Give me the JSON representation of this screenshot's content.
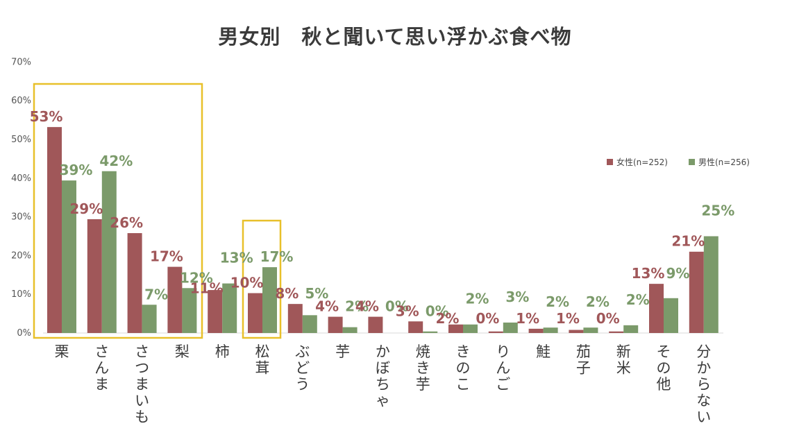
{
  "chart_data": {
    "type": "bar",
    "title": "男女別　秋と聞いて思い浮かぶ食べ物",
    "xlabel": "",
    "ylabel": "",
    "ylim": [
      0,
      70
    ],
    "yticks": [
      "0%",
      "10%",
      "20%",
      "30%",
      "40%",
      "50%",
      "60%",
      "70%"
    ],
    "categories": [
      "栗",
      "さんま",
      "さつまいも",
      "梨",
      "柿",
      "松茸",
      "ぶどう",
      "芋",
      "かぼちゃ",
      "焼き芋",
      "きのこ",
      "りんご",
      "鮭",
      "茄子",
      "新米",
      "その他",
      "分からない"
    ],
    "series": [
      {
        "name": "女性(n=252)",
        "color": "#a05759",
        "values": [
          53,
          29,
          26,
          17,
          11,
          10,
          8,
          4,
          4,
          3,
          2,
          0,
          1,
          1,
          0,
          13,
          21
        ],
        "plot_values": [
          53.2,
          29.4,
          25.8,
          17.1,
          11.1,
          10.3,
          7.5,
          4.2,
          4.2,
          3.0,
          2.2,
          0.4,
          1.1,
          0.8,
          0.4,
          12.7,
          21.0
        ],
        "labels": [
          "53%",
          "29%",
          "26%",
          "17%",
          "11%",
          "10%",
          "8%",
          "4%",
          "4%",
          "3%",
          "2%",
          "0%",
          "1%",
          "1%",
          "0%",
          "13%",
          "21%"
        ]
      },
      {
        "name": "男性(n=256)",
        "color": "#7b9a6a",
        "values": [
          39,
          42,
          7,
          12,
          13,
          17,
          5,
          2,
          0,
          0,
          2,
          3,
          2,
          2,
          2,
          9,
          25
        ],
        "plot_values": [
          39.4,
          41.8,
          7.3,
          11.6,
          12.8,
          17.0,
          4.6,
          1.5,
          0.0,
          0.4,
          2.2,
          2.7,
          1.4,
          1.4,
          2.0,
          9.0,
          25.0
        ],
        "labels": [
          "39%",
          "42%",
          "7%",
          "12%",
          "13%",
          "17%",
          "5%",
          "2%",
          "0%",
          "0%",
          "2%",
          "3%",
          "2%",
          "2%",
          "2%",
          "9%",
          "25%"
        ]
      }
    ],
    "legend": "right",
    "grid": false,
    "highlight_color": "#e8c02a"
  }
}
